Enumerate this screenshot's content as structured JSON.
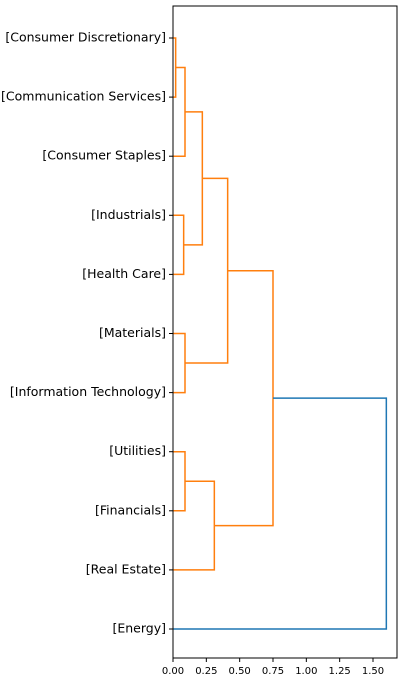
{
  "chart_data": {
    "type": "dendrogram",
    "orientation": "left",
    "leaves": [
      "[Consumer Discretionary]",
      "[Communication Services]",
      "[Consumer Staples]",
      "[Industrials]",
      "[Health Care]",
      "[Materials]",
      "[Information Technology]",
      "[Utilities]",
      "[Financials]",
      "[Real Estate]",
      "[Energy]"
    ],
    "links": [
      {
        "a": "leaf:0",
        "b": "leaf:1",
        "height": 0.02,
        "color": "#ff7f0e",
        "id": "n1"
      },
      {
        "a": "n1",
        "b": "leaf:2",
        "height": 0.09,
        "color": "#ff7f0e",
        "id": "n2"
      },
      {
        "a": "leaf:3",
        "b": "leaf:4",
        "height": 0.08,
        "color": "#ff7f0e",
        "id": "n3"
      },
      {
        "a": "n2",
        "b": "n3",
        "height": 0.22,
        "color": "#ff7f0e",
        "id": "n4"
      },
      {
        "a": "leaf:5",
        "b": "leaf:6",
        "height": 0.09,
        "color": "#ff7f0e",
        "id": "n5"
      },
      {
        "a": "n4",
        "b": "n5",
        "height": 0.41,
        "color": "#ff7f0e",
        "id": "n6"
      },
      {
        "a": "leaf:7",
        "b": "leaf:8",
        "height": 0.09,
        "color": "#ff7f0e",
        "id": "n7"
      },
      {
        "a": "n7",
        "b": "leaf:9",
        "height": 0.31,
        "color": "#ff7f0e",
        "id": "n8"
      },
      {
        "a": "n6",
        "b": "n8",
        "height": 0.75,
        "color": "#ff7f0e",
        "id": "n9"
      },
      {
        "a": "n9",
        "b": "leaf:10",
        "height": 1.6,
        "color": "#1f77b4",
        "id": "n10"
      }
    ],
    "xlim": [
      0,
      1.68
    ],
    "xticks": [
      0.0,
      0.25,
      0.5,
      0.75,
      1.0,
      1.25,
      1.5
    ],
    "xtick_labels": [
      "0.00",
      "0.25",
      "0.50",
      "0.75",
      "1.00",
      "1.25",
      "1.50"
    ],
    "title": "",
    "xlabel": "",
    "ylabel": "",
    "grid": false
  }
}
